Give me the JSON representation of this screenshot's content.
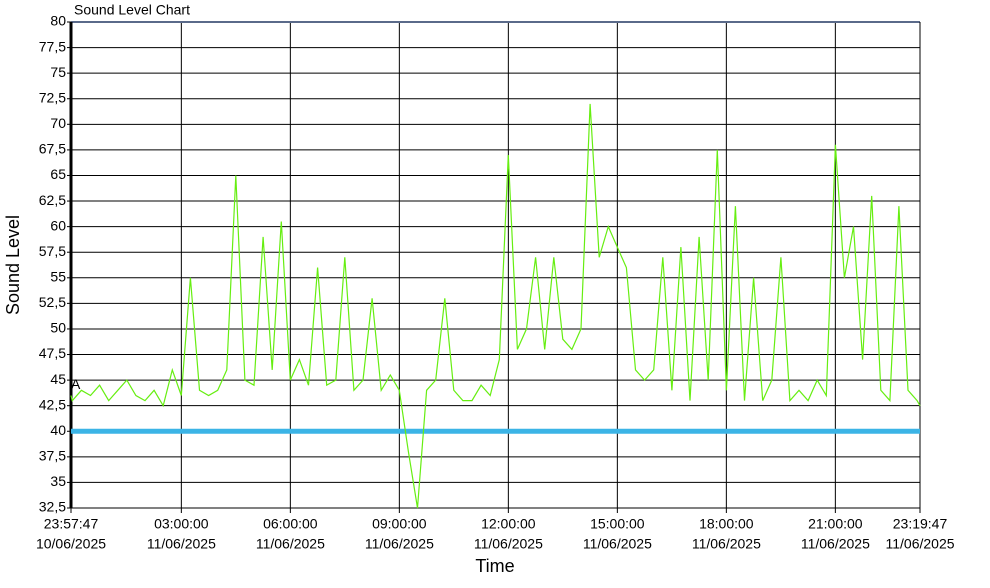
{
  "chart_data": {
    "type": "line",
    "title": "Sound Level Chart",
    "x_label": "Time",
    "y_label": "Sound Level",
    "x": [
      "2025-06-10T23:57:47",
      "2025-06-11T00:00:00",
      "2025-06-11T00:15:00",
      "2025-06-11T00:30:00",
      "2025-06-11T00:45:00",
      "2025-06-11T01:00:00",
      "2025-06-11T01:15:00",
      "2025-06-11T01:30:00",
      "2025-06-11T01:45:00",
      "2025-06-11T02:00:00",
      "2025-06-11T02:15:00",
      "2025-06-11T02:30:00",
      "2025-06-11T02:45:00",
      "2025-06-11T03:00:00",
      "2025-06-11T03:15:00",
      "2025-06-11T03:30:00",
      "2025-06-11T03:45:00",
      "2025-06-11T04:00:00",
      "2025-06-11T04:15:00",
      "2025-06-11T04:30:00",
      "2025-06-11T04:45:00",
      "2025-06-11T05:00:00",
      "2025-06-11T05:15:00",
      "2025-06-11T05:30:00",
      "2025-06-11T05:45:00",
      "2025-06-11T06:00:00",
      "2025-06-11T06:15:00",
      "2025-06-11T06:30:00",
      "2025-06-11T06:45:00",
      "2025-06-11T07:00:00",
      "2025-06-11T07:15:00",
      "2025-06-11T07:30:00",
      "2025-06-11T07:45:00",
      "2025-06-11T08:00:00",
      "2025-06-11T08:15:00",
      "2025-06-11T08:30:00",
      "2025-06-11T08:45:00",
      "2025-06-11T09:00:00",
      "2025-06-11T09:15:00",
      "2025-06-11T09:30:00",
      "2025-06-11T09:45:00",
      "2025-06-11T10:00:00",
      "2025-06-11T10:15:00",
      "2025-06-11T10:30:00",
      "2025-06-11T10:45:00",
      "2025-06-11T11:00:00",
      "2025-06-11T11:15:00",
      "2025-06-11T11:30:00",
      "2025-06-11T11:45:00",
      "2025-06-11T12:00:00",
      "2025-06-11T12:15:00",
      "2025-06-11T12:30:00",
      "2025-06-11T12:45:00",
      "2025-06-11T13:00:00",
      "2025-06-11T13:15:00",
      "2025-06-11T13:30:00",
      "2025-06-11T13:45:00",
      "2025-06-11T14:00:00",
      "2025-06-11T14:15:00",
      "2025-06-11T14:30:00",
      "2025-06-11T14:45:00",
      "2025-06-11T15:00:00",
      "2025-06-11T15:15:00",
      "2025-06-11T15:30:00",
      "2025-06-11T15:45:00",
      "2025-06-11T16:00:00",
      "2025-06-11T16:15:00",
      "2025-06-11T16:30:00",
      "2025-06-11T16:45:00",
      "2025-06-11T17:00:00",
      "2025-06-11T17:15:00",
      "2025-06-11T17:30:00",
      "2025-06-11T17:45:00",
      "2025-06-11T18:00:00",
      "2025-06-11T18:15:00",
      "2025-06-11T18:30:00",
      "2025-06-11T18:45:00",
      "2025-06-11T19:00:00",
      "2025-06-11T19:15:00",
      "2025-06-11T19:30:00",
      "2025-06-11T19:45:00",
      "2025-06-11T20:00:00",
      "2025-06-11T20:15:00",
      "2025-06-11T20:30:00",
      "2025-06-11T20:45:00",
      "2025-06-11T21:00:00",
      "2025-06-11T21:15:00",
      "2025-06-11T21:30:00",
      "2025-06-11T21:45:00",
      "2025-06-11T22:00:00",
      "2025-06-11T22:15:00",
      "2025-06-11T22:30:00",
      "2025-06-11T22:45:00",
      "2025-06-11T23:00:00",
      "2025-06-11T23:15:00",
      "2025-06-11T23:19:47"
    ],
    "series": [
      {
        "color": "#66ee11",
        "values": [
          43.5,
          43,
          44,
          43.5,
          44.5,
          43,
          44,
          45,
          43.5,
          43,
          44,
          42.5,
          46,
          43.5,
          55,
          44,
          43.5,
          44,
          46,
          65,
          45,
          44.5,
          59,
          46,
          60.5,
          45,
          47,
          44.5,
          56,
          44.5,
          45,
          57,
          44,
          45,
          53,
          44,
          45.5,
          44,
          38,
          32.5,
          44,
          45,
          53,
          44,
          43,
          43,
          44.5,
          43.5,
          47,
          67,
          48,
          50,
          57,
          48,
          57,
          49,
          48,
          50,
          72,
          57,
          60,
          58,
          56,
          46,
          45,
          46,
          57,
          44,
          58,
          43,
          59,
          45,
          67.5,
          44,
          62,
          43,
          55,
          43,
          45,
          57,
          43,
          44,
          43,
          45,
          43.5,
          68,
          55,
          60,
          47,
          63,
          44,
          43,
          62,
          44,
          43,
          42.5
        ]
      }
    ],
    "threshold": {
      "value": 40,
      "color": "#3bb4e6"
    },
    "marker": {
      "label": "A",
      "value": 44.5
    },
    "xlim": [
      "2025-06-10T23:57:47",
      "2025-06-11T23:19:47"
    ],
    "xticks": [
      {
        "value": "2025-06-10T23:57:47",
        "label": [
          "23:57:47",
          "10/06/2025"
        ]
      },
      {
        "value": "2025-06-11T03:00:00",
        "label": [
          "03:00:00",
          "11/06/2025"
        ]
      },
      {
        "value": "2025-06-11T06:00:00",
        "label": [
          "06:00:00",
          "11/06/2025"
        ]
      },
      {
        "value": "2025-06-11T09:00:00",
        "label": [
          "09:00:00",
          "11/06/2025"
        ]
      },
      {
        "value": "2025-06-11T12:00:00",
        "label": [
          "12:00:00",
          "11/06/2025"
        ]
      },
      {
        "value": "2025-06-11T15:00:00",
        "label": [
          "15:00:00",
          "11/06/2025"
        ]
      },
      {
        "value": "2025-06-11T18:00:00",
        "label": [
          "18:00:00",
          "11/06/2025"
        ]
      },
      {
        "value": "2025-06-11T21:00:00",
        "label": [
          "21:00:00",
          "11/06/2025"
        ]
      },
      {
        "value": "2025-06-11T23:19:47",
        "label": [
          "23:19:47",
          "11/06/2025"
        ]
      }
    ],
    "ylim": [
      32.5,
      80
    ],
    "yticks": [
      {
        "value": 32.5,
        "label": "32,5"
      },
      35,
      {
        "value": 37.5,
        "label": "37,5"
      },
      40,
      {
        "value": 42.5,
        "label": "42,5"
      },
      45,
      {
        "value": 47.5,
        "label": "47,5"
      },
      50,
      {
        "value": 52.5,
        "label": "52,5"
      },
      55,
      {
        "value": 57.5,
        "label": "57,5"
      },
      60,
      {
        "value": 62.5,
        "label": "62,5"
      },
      65,
      {
        "value": 67.5,
        "label": "67,5"
      },
      70,
      {
        "value": 72.5,
        "label": "72,5"
      },
      75,
      {
        "value": 77.5,
        "label": "77,5"
      },
      80
    ],
    "grid": true
  }
}
